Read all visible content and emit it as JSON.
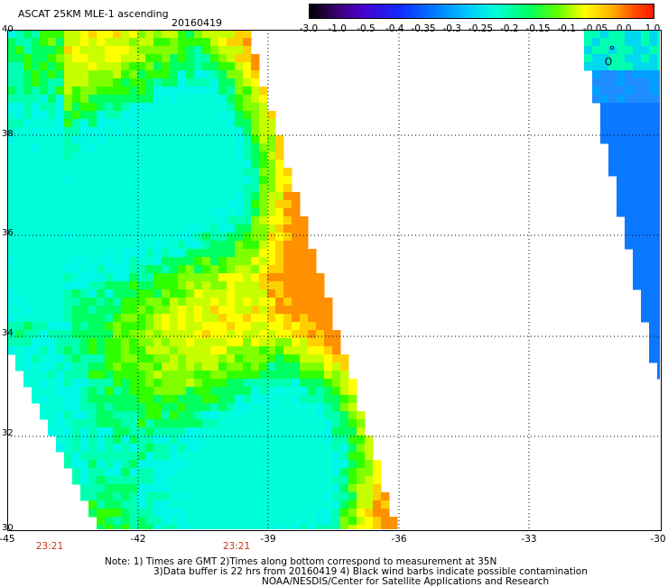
{
  "header": {
    "title": "ASCAT 25KM MLE-1 ascending",
    "date": "20160419"
  },
  "colorbar": {
    "labels": [
      "-3.0",
      "-1.0",
      "-0.5",
      "-0.4",
      "-0.35",
      "-0.3",
      "-0.25",
      "-0.2",
      "-0.15",
      "-0.1",
      "-0.05",
      "0.0",
      "1.0"
    ],
    "colors": [
      "#000000",
      "#4b00c8",
      "#1428ff",
      "#0078ff",
      "#00c8ff",
      "#00ffd8",
      "#00ff60",
      "#60ff00",
      "#ffff00",
      "#ffb000",
      "#ff5000",
      "#ff1800"
    ]
  },
  "map": {
    "x_ticks": [
      "-45",
      "-42",
      "-39",
      "-36",
      "-33",
      "-30"
    ],
    "y_ticks": [
      "40",
      "38",
      "36",
      "34",
      "32",
      "30"
    ],
    "lon_range": [
      -45,
      -30
    ],
    "lat_range": [
      30,
      40
    ],
    "grid": "dotted",
    "time_labels": [
      "23:21",
      "23:21"
    ]
  },
  "notes": {
    "line1": "Note: 1) Times are GMT 2)Times along bottom correspond to measurement at 35N",
    "line2": "3)Data buffer is 22 hrs from 20160419 4) Black wind barbs indicate possible contamination",
    "line3": "NOAA/NESDIS/Center for Satellite Applications and Research"
  }
}
